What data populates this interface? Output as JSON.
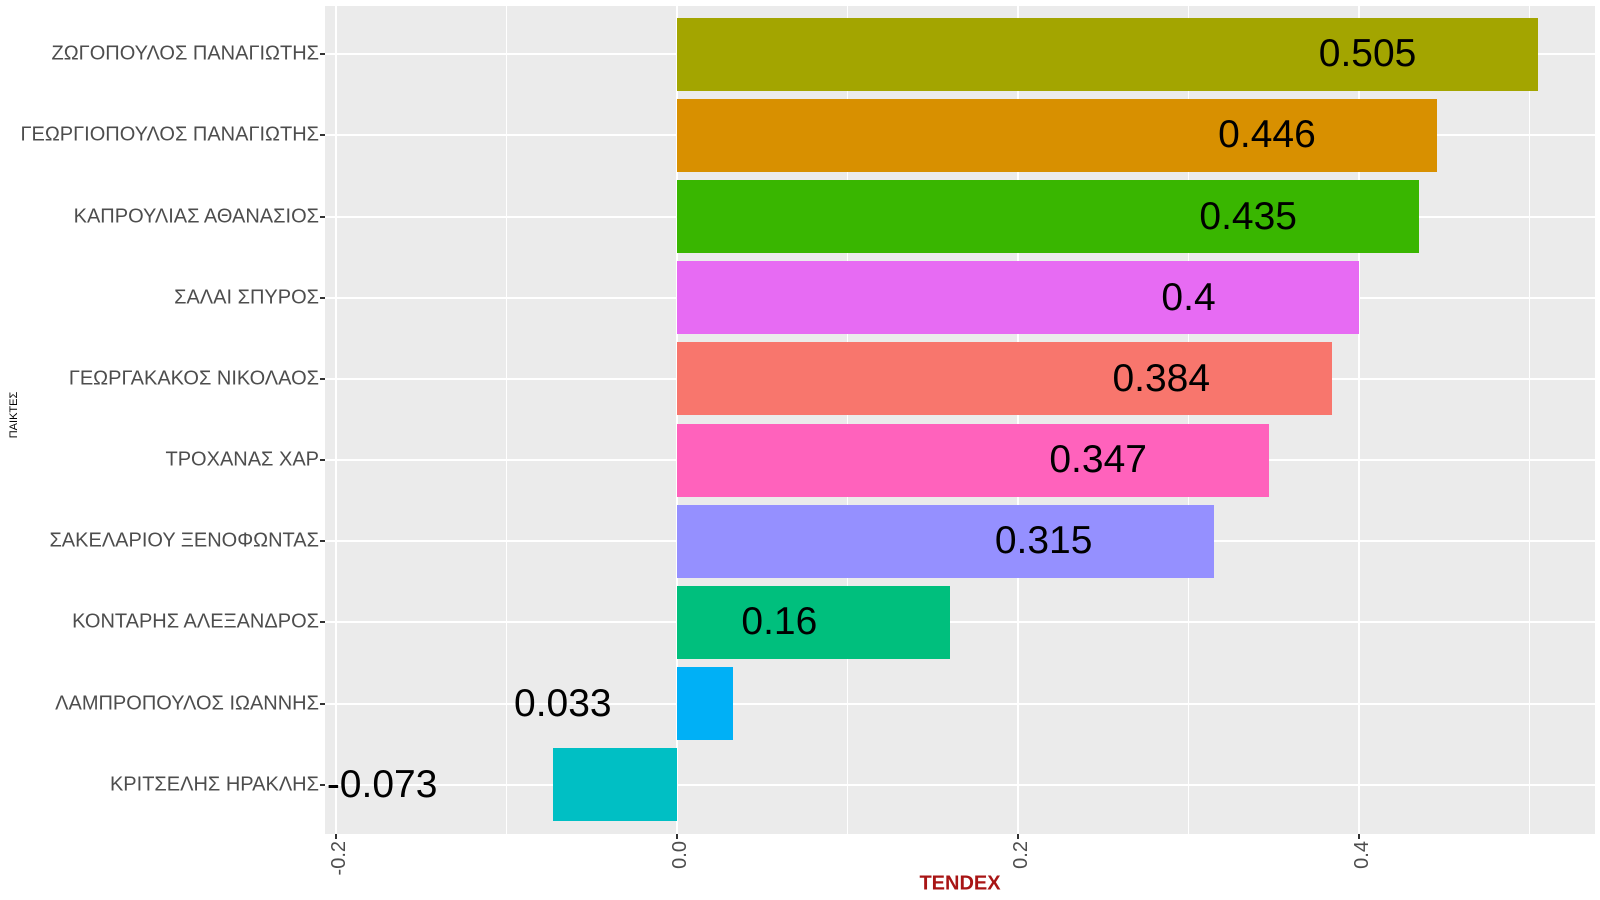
{
  "chart_data": {
    "type": "bar",
    "orientation": "horizontal",
    "title": "",
    "xlabel": "TENDEX",
    "ylabel": "ΠΑΙΚΤΕΣ",
    "categories": [
      "ΖΩΓΟΠΟΥΛΟΣ ΠΑΝΑΓΙΩΤΗΣ",
      "ΓΕΩΡΓΙΟΠΟΥΛΟΣ ΠΑΝΑΓΙΩΤΗΣ",
      "ΚΑΠΡΟΥΛΙΑΣ ΑΘΑΝΑΣΙΟΣ",
      "ΣΑΛΑΙ ΣΠΥΡΟΣ",
      "ΓΕΩΡΓΑΚΑΚΟΣ ΝΙΚΟΛΑΟΣ",
      "ΤΡΟΧΑΝΑΣ ΧΑΡ",
      "ΣΑΚΕΛΑΡΙΟΥ ΞΕΝΟΦΩΝΤΑΣ",
      "ΚΟΝΤΑΡΗΣ ΑΛΕΞΑΝΔΡΟΣ",
      "ΛΑΜΠΡΟΠΟΥΛΟΣ ΙΩΑΝΝΗΣ",
      "ΚΡΙΤΣΕΛΗΣ ΗΡΑΚΛΗΣ"
    ],
    "values": [
      0.505,
      0.446,
      0.435,
      0.4,
      0.384,
      0.347,
      0.315,
      0.16,
      0.033,
      -0.073
    ],
    "value_labels": [
      "0.505",
      "0.446",
      "0.435",
      "0.4",
      "0.384",
      "0.347",
      "0.315",
      "0.16",
      "0.033",
      "-0.073"
    ],
    "bar_colors": [
      "#A3A500",
      "#D89000",
      "#39B600",
      "#E76BF3",
      "#F8766D",
      "#FF62BC",
      "#9590FF",
      "#00BF7D",
      "#00B0F6",
      "#00BFC4"
    ],
    "x_tick_labels": [
      "-0.2",
      "0.0",
      "0.2",
      "0.4"
    ],
    "x_tick_values": [
      -0.2,
      0.0,
      0.2,
      0.4
    ],
    "x_minor_ticks": [
      -0.1,
      0.1,
      0.3,
      0.5
    ],
    "xlim": [
      -0.2065,
      0.5384
    ],
    "value_label_offset": -0.1,
    "grid": "on",
    "legend": "none",
    "colors": {
      "plot_background": "#EBEBEB",
      "gridline": "#FFFFFF",
      "axis_text": "#4D4D4D",
      "tick_mark": "#333333",
      "value_label": "#000000",
      "xlabel_color": "#A81515",
      "ylabel_color": "#000000",
      "page_background": "#FFFFFF"
    }
  }
}
